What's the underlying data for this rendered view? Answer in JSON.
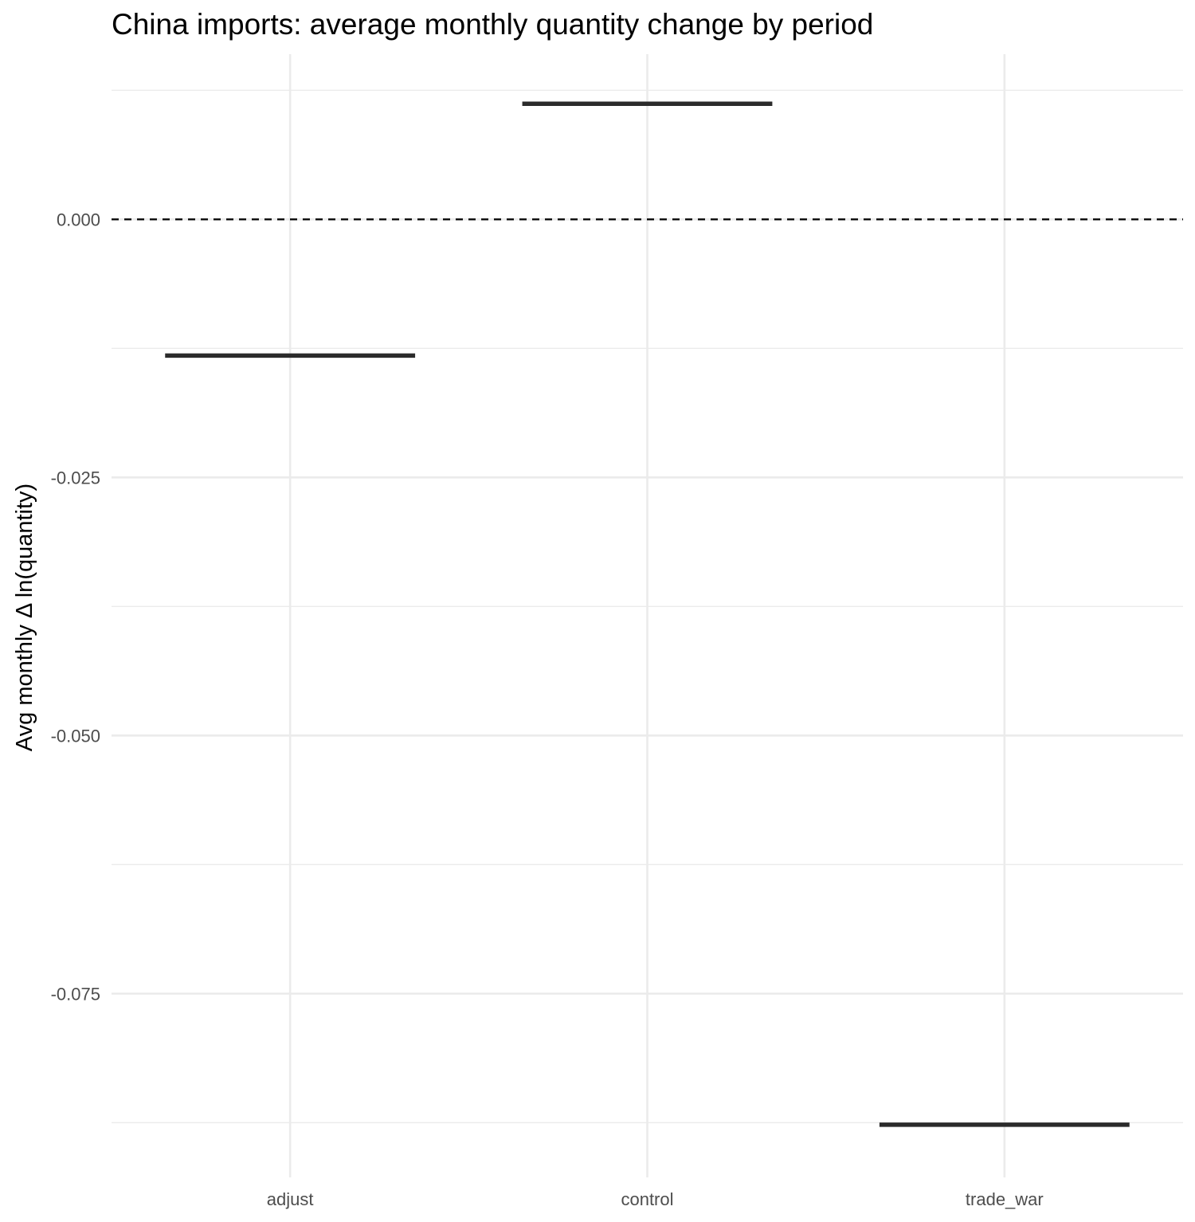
{
  "chart_data": {
    "type": "crossbar",
    "title": "China imports: average monthly quantity change by period",
    "xlabel": "",
    "ylabel": "Avg monthly Δ ln(quantity)",
    "categories": [
      "adjust",
      "control",
      "trade_war"
    ],
    "values": [
      -0.0132,
      0.0112,
      -0.0877
    ],
    "ylim": [
      -0.0928,
      0.016
    ],
    "yticks": [
      0.0,
      -0.025,
      -0.05,
      -0.075
    ],
    "ytick_labels": [
      "0.000",
      "-0.025",
      "-0.050",
      "-0.075"
    ],
    "reference_line": {
      "y": 0.0,
      "style": "dashed"
    },
    "grid": true,
    "legend": "none",
    "colors": {
      "mark": "#2b2b2b",
      "grid": "#ebebeb",
      "refline": "#000000"
    }
  }
}
